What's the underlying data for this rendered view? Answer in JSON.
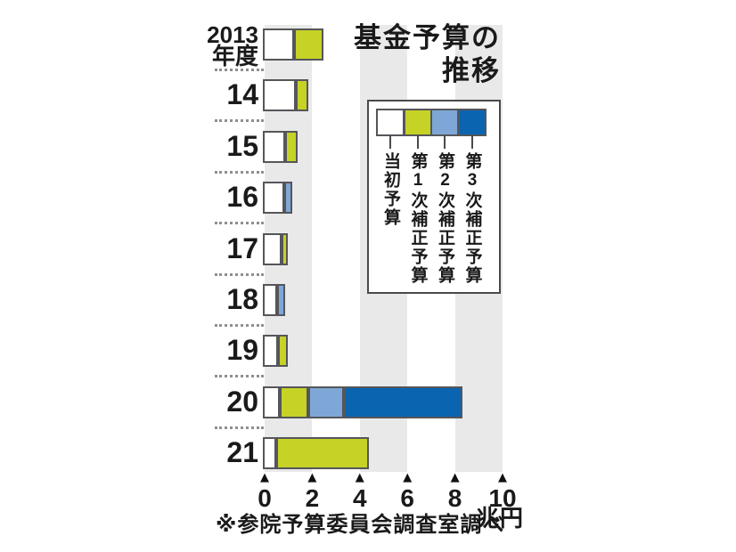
{
  "title": {
    "line1": "基金予算の",
    "line2": "推移"
  },
  "source_note": "※参院予算委員会調査室調べ",
  "axis": {
    "unit": "兆円",
    "ticks": [
      0,
      2,
      4,
      6,
      8,
      10
    ]
  },
  "legend": {
    "items": [
      {
        "label": "当初予算",
        "color": "#ffffff"
      },
      {
        "label": "第1次補正予算",
        "color": "#c6d226"
      },
      {
        "label": "第2次補正予算",
        "color": "#7ea7d7"
      },
      {
        "label": "第3次補正予算",
        "color": "#0a64b0"
      }
    ]
  },
  "colors": {
    "background_band": "#e9e9ea",
    "bar_border": "#55565a",
    "text": "#1a1a1a"
  },
  "chart_data": {
    "type": "bar",
    "orientation": "horizontal",
    "stacked": true,
    "title": "基金予算の推移",
    "categories": [
      "2013年度",
      "14",
      "15",
      "16",
      "17",
      "18",
      "19",
      "20",
      "21"
    ],
    "series": [
      {
        "name": "当初予算",
        "color": "#ffffff",
        "values": [
          1.3,
          1.4,
          0.95,
          0.9,
          0.8,
          0.6,
          0.65,
          0.7,
          0.55
        ]
      },
      {
        "name": "第1次補正予算",
        "color": "#c6d226",
        "values": [
          1.25,
          0.5,
          0.5,
          0,
          0.25,
          0,
          0.4,
          1.2,
          3.9
        ]
      },
      {
        "name": "第2次補正予算",
        "color": "#7ea7d7",
        "values": [
          0,
          0,
          0,
          0.35,
          0,
          0.35,
          0,
          1.5,
          0
        ]
      },
      {
        "name": "第3次補正予算",
        "color": "#0a64b0",
        "values": [
          0,
          0,
          0,
          0,
          0,
          0,
          0,
          5.0,
          0
        ]
      }
    ],
    "xlabel": "兆円",
    "xlim": [
      0,
      10
    ],
    "xticks": [
      0,
      2,
      4,
      6,
      8,
      10
    ],
    "shaded_bands": [
      [
        0,
        2
      ],
      [
        4,
        6
      ],
      [
        8,
        10
      ]
    ],
    "grid": false,
    "legend_position": "upper right",
    "source": "※参院予算委員会調査室調べ"
  }
}
